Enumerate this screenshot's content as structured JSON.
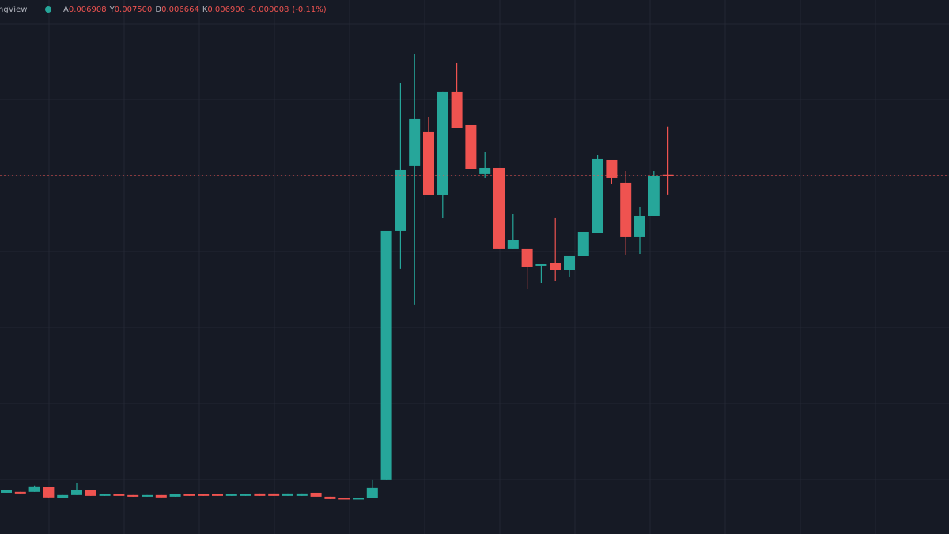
{
  "chart_data": {
    "type": "candlestick",
    "title": "ngView",
    "ohlc_prefixes": [
      "A",
      "Y",
      "D",
      "K"
    ],
    "last_labels": [
      "0.006908",
      "0.007500",
      "0.006664",
      "0.006900"
    ],
    "change": {
      "value": -8e-06,
      "label": "-0.000008"
    },
    "change_pct": {
      "value": -0.11,
      "label": "(-0.11%)"
    },
    "open": [
      0.003005,
      0.003016,
      0.003016,
      0.003074,
      0.002937,
      0.002977,
      0.003034,
      0.002967,
      0.002987,
      0.002977,
      0.002957,
      0.002977,
      0.002957,
      0.002987,
      0.002987,
      0.002987,
      0.002967,
      0.002967,
      0.002996,
      0.002996,
      0.002967,
      0.002967,
      0.003005,
      0.002957,
      0.002937,
      0.002928,
      0.002937,
      0.003161,
      0.006217,
      0.007013,
      0.00743,
      0.006663,
      0.007925,
      0.007517,
      0.006916,
      0.006993,
      0.005994,
      0.005994,
      0.00579,
      0.005819,
      0.005741,
      0.005906,
      0.006197,
      0.00709,
      0.006809,
      0.006149,
      0.006401,
      0.006908
    ],
    "high": [
      0.003034,
      0.003016,
      0.003094,
      0.003074,
      0.002977,
      0.003123,
      0.003034,
      0.002987,
      0.002987,
      0.002977,
      0.002977,
      0.002977,
      0.002987,
      0.002987,
      0.002987,
      0.002987,
      0.002987,
      0.002987,
      0.002996,
      0.002996,
      0.002996,
      0.002996,
      0.003005,
      0.002957,
      0.002937,
      0.002937,
      0.003161,
      0.006217,
      0.008031,
      0.00839,
      0.007614,
      0.007925,
      0.008274,
      0.007517,
      0.007187,
      0.006993,
      0.00643,
      0.005994,
      0.005809,
      0.006382,
      0.005916,
      0.006207,
      0.007148,
      0.00709,
      0.006954,
      0.006508,
      0.006954,
      0.0075
    ],
    "low": [
      0.003005,
      0.002996,
      0.003016,
      0.002948,
      0.002937,
      0.002977,
      0.002967,
      0.002967,
      0.002967,
      0.002957,
      0.002957,
      0.002948,
      0.002957,
      0.002967,
      0.002967,
      0.002967,
      0.002967,
      0.002967,
      0.002967,
      0.002967,
      0.002967,
      0.002967,
      0.002957,
      0.002928,
      0.002928,
      0.002928,
      0.002937,
      0.003161,
      0.005752,
      0.005315,
      0.006663,
      0.006382,
      0.007478,
      0.006983,
      0.006867,
      0.005994,
      0.005994,
      0.005508,
      0.005576,
      0.005605,
      0.005654,
      0.005906,
      0.006197,
      0.006799,
      0.005926,
      0.005935,
      0.006401,
      0.006664
    ],
    "close": [
      0.003034,
      0.002996,
      0.003084,
      0.002948,
      0.002977,
      0.003034,
      0.002967,
      0.002987,
      0.002967,
      0.002957,
      0.002977,
      0.002948,
      0.002987,
      0.002967,
      0.002967,
      0.002967,
      0.002987,
      0.002987,
      0.002967,
      0.002967,
      0.002996,
      0.002996,
      0.002957,
      0.002928,
      0.002928,
      0.002937,
      0.003064,
      0.006217,
      0.006964,
      0.007595,
      0.006663,
      0.007925,
      0.007478,
      0.006983,
      0.006993,
      0.005994,
      0.0061,
      0.00578,
      0.005809,
      0.005741,
      0.005916,
      0.006207,
      0.0071,
      0.006867,
      0.006149,
      0.006401,
      0.006896,
      0.0069
    ],
    "up_color": "#26a69a",
    "down_color": "#ef5350",
    "ylim": [
      0.0025,
      0.00905
    ],
    "grid": true
  }
}
